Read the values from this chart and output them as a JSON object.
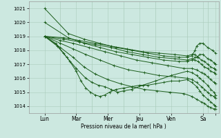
{
  "xlabel": "Pression niveau de la mer( hPa )",
  "ylim": [
    1013.5,
    1021.5
  ],
  "xlim": [
    0,
    120
  ],
  "yticks": [
    1014,
    1015,
    1016,
    1017,
    1018,
    1019,
    1020,
    1021
  ],
  "xtick_positions": [
    10,
    30,
    50,
    70,
    90,
    110,
    118
  ],
  "xtick_labels": [
    "Lun",
    "Mar",
    "Mer",
    "Jeu",
    "Ven",
    "Sa",
    ""
  ],
  "day_vlines": [
    20,
    40,
    60,
    80,
    100,
    113
  ],
  "bg_color": "#cce8e0",
  "grid_color": "#aaccbb",
  "line_color": "#1a5c1a",
  "linewidth": 0.7,
  "markersize": 2.5,
  "series": [
    {
      "x": [
        10,
        25,
        35,
        45,
        55,
        65,
        75,
        85,
        95,
        100,
        103,
        105,
        106,
        108,
        110,
        113,
        116,
        118
      ],
      "y": [
        1021.0,
        1019.2,
        1018.8,
        1018.5,
        1018.2,
        1018.0,
        1017.8,
        1017.6,
        1017.5,
        1017.5,
        1017.6,
        1018.0,
        1018.3,
        1018.5,
        1018.5,
        1018.2,
        1018.0,
        1017.8
      ]
    },
    {
      "x": [
        10,
        25,
        35,
        45,
        55,
        65,
        75,
        85,
        95,
        100,
        103,
        105,
        106,
        108,
        110,
        113,
        115,
        117,
        118
      ],
      "y": [
        1020.0,
        1018.9,
        1018.5,
        1018.2,
        1017.9,
        1017.7,
        1017.5,
        1017.3,
        1017.2,
        1017.2,
        1017.3,
        1017.5,
        1017.5,
        1017.7,
        1017.7,
        1017.4,
        1017.3,
        1017.1,
        1017.0
      ]
    },
    {
      "x": [
        10,
        22,
        32,
        42,
        52,
        62,
        72,
        82,
        92,
        100,
        103,
        105,
        107,
        109,
        111,
        113,
        115,
        117,
        118
      ],
      "y": [
        1019.0,
        1018.9,
        1018.7,
        1018.5,
        1018.3,
        1018.1,
        1017.9,
        1017.8,
        1017.7,
        1017.6,
        1017.7,
        1017.7,
        1017.5,
        1017.3,
        1017.2,
        1017.0,
        1016.8,
        1016.7,
        1016.6
      ]
    },
    {
      "x": [
        10,
        22,
        32,
        42,
        52,
        62,
        72,
        82,
        92,
        100,
        103,
        105,
        107,
        109,
        111,
        113,
        115,
        117,
        118
      ],
      "y": [
        1019.0,
        1018.8,
        1018.6,
        1018.4,
        1018.2,
        1017.9,
        1017.7,
        1017.5,
        1017.4,
        1017.3,
        1017.4,
        1017.3,
        1017.2,
        1017.0,
        1016.8,
        1016.7,
        1016.5,
        1016.4,
        1016.3
      ]
    },
    {
      "x": [
        10,
        20,
        28,
        38,
        48,
        58,
        68,
        78,
        88,
        98,
        103,
        106,
        109,
        111,
        113,
        115,
        117,
        118
      ],
      "y": [
        1019.0,
        1018.7,
        1018.5,
        1018.2,
        1017.9,
        1017.6,
        1017.3,
        1017.1,
        1016.9,
        1016.7,
        1016.7,
        1016.6,
        1016.4,
        1016.3,
        1016.1,
        1015.9,
        1015.7,
        1015.6
      ]
    },
    {
      "x": [
        10,
        20,
        28,
        36,
        45,
        54,
        63,
        73,
        82,
        92,
        100,
        103,
        106,
        109,
        111,
        113,
        115,
        117,
        118
      ],
      "y": [
        1019.0,
        1018.5,
        1018.1,
        1017.7,
        1017.3,
        1016.9,
        1016.6,
        1016.4,
        1016.2,
        1016.1,
        1016.0,
        1015.9,
        1015.7,
        1015.4,
        1015.2,
        1015.0,
        1014.8,
        1014.7,
        1014.6
      ]
    },
    {
      "x": [
        10,
        20,
        28,
        35,
        42,
        50,
        58,
        65,
        73,
        81,
        89,
        98,
        103,
        106,
        109,
        111,
        113,
        115,
        117,
        118
      ],
      "y": [
        1019.0,
        1018.2,
        1017.5,
        1016.8,
        1016.3,
        1015.9,
        1015.6,
        1015.4,
        1015.2,
        1015.1,
        1015.0,
        1014.9,
        1014.7,
        1014.5,
        1014.3,
        1014.2,
        1014.0,
        1013.9,
        1013.8,
        1013.8
      ]
    },
    {
      "x": [
        10,
        18,
        24,
        30,
        36,
        40,
        44,
        48,
        52,
        56,
        60,
        65,
        72,
        80,
        90,
        100,
        103,
        106,
        108,
        110,
        113,
        115,
        117,
        118
      ],
      "y": [
        1019.0,
        1018.3,
        1017.5,
        1016.7,
        1016.0,
        1015.7,
        1015.5,
        1015.4,
        1015.2,
        1015.0,
        1015.1,
        1015.2,
        1015.5,
        1015.8,
        1016.2,
        1016.5,
        1016.4,
        1016.2,
        1016.0,
        1015.8,
        1015.5,
        1015.2,
        1015.0,
        1014.8
      ]
    },
    {
      "x": [
        10,
        17,
        22,
        26,
        30,
        33,
        36,
        39,
        42,
        45,
        48,
        51,
        55,
        60,
        65,
        70,
        75,
        80,
        85,
        90,
        95,
        100,
        103,
        106,
        108,
        110,
        113,
        115,
        117,
        118
      ],
      "y": [
        1019.0,
        1018.5,
        1017.8,
        1017.2,
        1016.5,
        1015.8,
        1015.3,
        1015.0,
        1014.8,
        1014.7,
        1014.8,
        1015.0,
        1015.2,
        1015.3,
        1015.4,
        1015.5,
        1015.5,
        1015.6,
        1015.7,
        1015.8,
        1015.8,
        1015.9,
        1015.7,
        1015.4,
        1015.1,
        1014.8,
        1014.5,
        1014.3,
        1014.1,
        1014.0
      ]
    }
  ]
}
